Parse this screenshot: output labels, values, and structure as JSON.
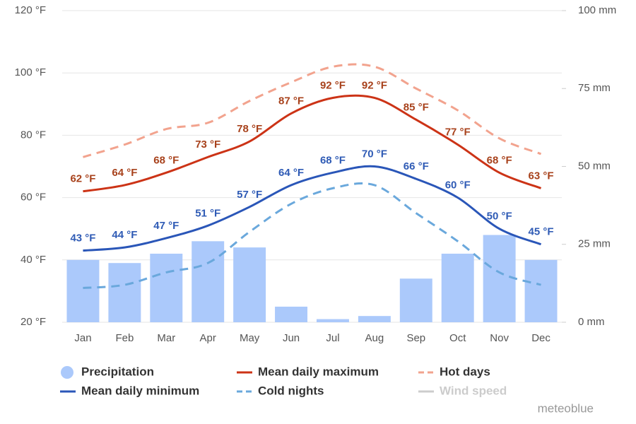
{
  "chart_data": {
    "type": "combo",
    "credit": "meteoblue",
    "categories": [
      "Jan",
      "Feb",
      "Mar",
      "Apr",
      "May",
      "Jun",
      "Jul",
      "Aug",
      "Sep",
      "Oct",
      "Nov",
      "Dec"
    ],
    "ylim": [
      20,
      120
    ],
    "yticks": [
      {
        "value": 20,
        "label": "20 °F"
      },
      {
        "value": 40,
        "label": "40 °F"
      },
      {
        "value": 60,
        "label": "60 °F"
      },
      {
        "value": 80,
        "label": "80 °F"
      },
      {
        "value": 100,
        "label": "100 °F"
      },
      {
        "value": 120,
        "label": "120 °F"
      }
    ],
    "y2lim": [
      0,
      100
    ],
    "y2ticks": [
      {
        "value": 0,
        "label": "0 mm"
      },
      {
        "value": 25,
        "label": "25 mm"
      },
      {
        "value": 50,
        "label": "50 mm"
      },
      {
        "value": 75,
        "label": "75 mm"
      },
      {
        "value": 100,
        "label": "100 mm"
      }
    ],
    "grid": true,
    "series": [
      {
        "name": "Precipitation",
        "type": "bar",
        "axis": "y2",
        "color": "#abc9fb",
        "values": [
          20,
          19,
          22,
          26,
          24,
          5,
          1,
          2,
          14,
          22,
          28,
          20
        ]
      },
      {
        "name": "Mean daily maximum",
        "type": "line",
        "color": "#cc3316",
        "label_color": "#a8421c",
        "values": [
          62,
          64,
          68,
          73,
          78,
          87,
          92,
          92,
          85,
          77,
          68,
          63
        ],
        "value_labels": [
          "62 °F",
          "64 °F",
          "68 °F",
          "73 °F",
          "78 °F",
          "87 °F",
          "92 °F",
          "92 °F",
          "85 °F",
          "77 °F",
          "68 °F",
          "63 °F"
        ]
      },
      {
        "name": "Hot days",
        "type": "line",
        "dashed": true,
        "color": "#f2a38e",
        "values": [
          73,
          77,
          82,
          84,
          91,
          97,
          102,
          102,
          95,
          88,
          79,
          74
        ]
      },
      {
        "name": "Mean daily minimum",
        "type": "line",
        "color": "#2a56b8",
        "label_color": "#2f5bb5",
        "values": [
          43,
          44,
          47,
          51,
          57,
          64,
          68,
          70,
          66,
          60,
          50,
          45
        ],
        "value_labels": [
          "43 °F",
          "44 °F",
          "47 °F",
          "51 °F",
          "57 °F",
          "64 °F",
          "68 °F",
          "70 °F",
          "66 °F",
          "60 °F",
          "50 °F",
          "45 °F"
        ]
      },
      {
        "name": "Cold nights",
        "type": "line",
        "dashed": true,
        "color": "#6aa8dc",
        "values": [
          31,
          32,
          36,
          39,
          49,
          58,
          63,
          64,
          55,
          46,
          36,
          32
        ]
      },
      {
        "name": "Wind speed",
        "type": "line",
        "color": "#cccccc",
        "visible": false
      }
    ]
  }
}
